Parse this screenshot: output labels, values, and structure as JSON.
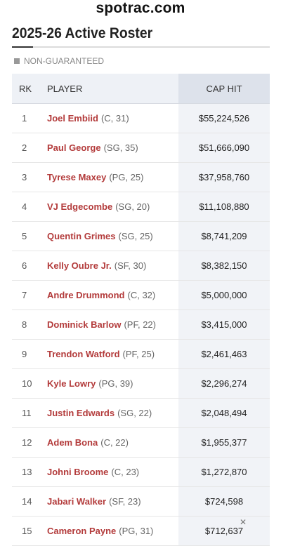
{
  "site": {
    "name": "spotrac.com"
  },
  "page": {
    "title": "2025-26 Active Roster"
  },
  "legend": {
    "label": "NON-GUARANTEED",
    "swatch_color": "#999999"
  },
  "table": {
    "headers": {
      "rank": "RK",
      "player": "PLAYER",
      "cap_hit": "CAP HIT"
    },
    "rows": [
      {
        "rank": "1",
        "name": "Joel Embiid",
        "meta": "(C, 31)",
        "cap_hit": "$55,224,526"
      },
      {
        "rank": "2",
        "name": "Paul George",
        "meta": "(SG, 35)",
        "cap_hit": "$51,666,090"
      },
      {
        "rank": "3",
        "name": "Tyrese Maxey",
        "meta": "(PG, 25)",
        "cap_hit": "$37,958,760"
      },
      {
        "rank": "4",
        "name": "VJ Edgecombe",
        "meta": "(SG, 20)",
        "cap_hit": "$11,108,880"
      },
      {
        "rank": "5",
        "name": "Quentin Grimes",
        "meta": "(SG, 25)",
        "cap_hit": "$8,741,209"
      },
      {
        "rank": "6",
        "name": "Kelly Oubre Jr.",
        "meta": "(SF, 30)",
        "cap_hit": "$8,382,150"
      },
      {
        "rank": "7",
        "name": "Andre Drummond",
        "meta": "(C, 32)",
        "cap_hit": "$5,000,000"
      },
      {
        "rank": "8",
        "name": "Dominick Barlow",
        "meta": "(PF, 22)",
        "cap_hit": "$3,415,000"
      },
      {
        "rank": "9",
        "name": "Trendon Watford",
        "meta": "(PF, 25)",
        "cap_hit": "$2,461,463"
      },
      {
        "rank": "10",
        "name": "Kyle Lowry",
        "meta": "(PG, 39)",
        "cap_hit": "$2,296,274"
      },
      {
        "rank": "11",
        "name": "Justin Edwards",
        "meta": "(SG, 22)",
        "cap_hit": "$2,048,494"
      },
      {
        "rank": "12",
        "name": "Adem Bona",
        "meta": "(C, 22)",
        "cap_hit": "$1,955,377"
      },
      {
        "rank": "13",
        "name": "Johni Broome",
        "meta": "(C, 23)",
        "cap_hit": "$1,272,870"
      },
      {
        "rank": "14",
        "name": "Jabari Walker",
        "meta": "(SF, 23)",
        "cap_hit": "$724,598"
      },
      {
        "rank": "15",
        "name": "Cameron Payne",
        "meta": "(PG, 31)",
        "cap_hit": "$712,637"
      }
    ]
  },
  "colors": {
    "player_link": "#b33b3b",
    "cap_column_bg": "#f1f3f7",
    "header_bg": "#eef1f6"
  },
  "icons": {
    "close": "close-icon"
  },
  "close_glyph": "✕"
}
